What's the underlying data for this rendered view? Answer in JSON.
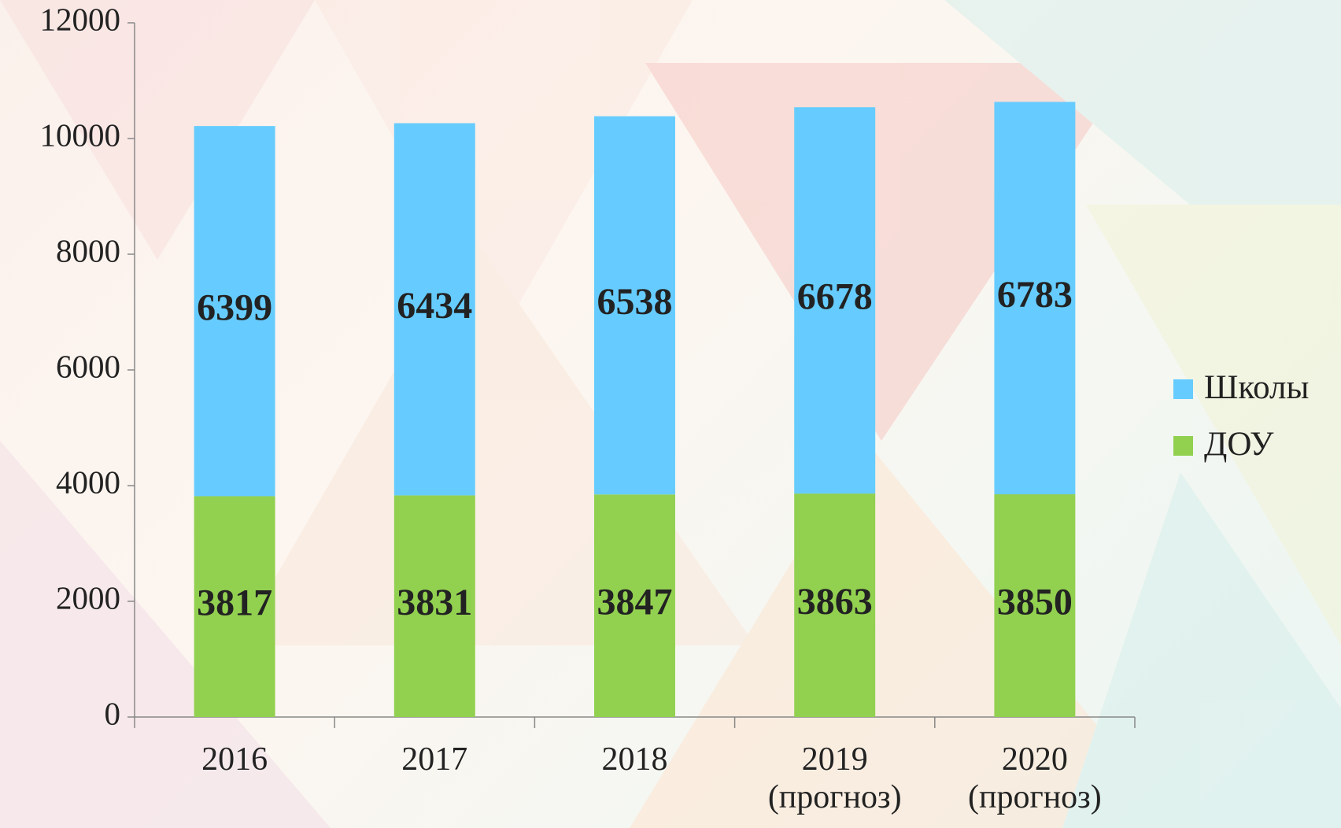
{
  "chart_data": {
    "type": "stacked_bar",
    "categories": [
      "2016",
      "2017",
      "2018",
      "2019 (прогноз)",
      "2020 (прогноз)"
    ],
    "series": [
      {
        "name": "ДОУ",
        "color": "#92d050",
        "values": [
          3817,
          3831,
          3847,
          3863,
          3850
        ]
      },
      {
        "name": "Школы",
        "color": "#66ccff",
        "values": [
          6399,
          6434,
          6538,
          6678,
          6783
        ]
      }
    ],
    "ylim": [
      0,
      12000
    ],
    "yticks": [
      0,
      2000,
      4000,
      6000,
      8000,
      10000,
      12000
    ],
    "legend": "right"
  }
}
